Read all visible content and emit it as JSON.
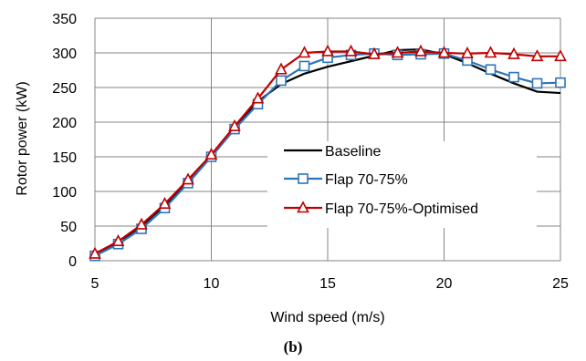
{
  "chart_data": {
    "type": "line",
    "title": "",
    "xlabel": "Wind speed (m/s)",
    "ylabel": "Rotor power (kW)",
    "xlim": [
      5,
      25
    ],
    "ylim": [
      0,
      350
    ],
    "x_ticks": [
      "5",
      "10",
      "15",
      "20",
      "25"
    ],
    "y_ticks": [
      "0",
      "50",
      "100",
      "150",
      "200",
      "250",
      "300",
      "350"
    ],
    "grid": true,
    "legend_position": "center-right",
    "x": [
      5,
      6,
      7,
      8,
      9,
      10,
      11,
      12,
      13,
      14,
      15,
      16,
      17,
      18,
      19,
      20,
      21,
      22,
      23,
      24,
      25
    ],
    "series": [
      {
        "name": "Baseline",
        "color": "#000000",
        "marker": "none",
        "values": [
          9,
          27,
          50,
          80,
          115,
          152,
          192,
          230,
          255,
          270,
          280,
          288,
          296,
          304,
          305,
          298,
          285,
          270,
          256,
          244,
          242
        ]
      },
      {
        "name": "Flap 70-75%",
        "color": "#2E75B6",
        "marker": "square",
        "values": [
          7,
          24,
          46,
          76,
          112,
          150,
          190,
          226,
          260,
          281,
          293,
          297,
          299,
          297,
          298,
          299,
          289,
          276,
          265,
          256,
          257
        ]
      },
      {
        "name": "Flap 70-75%-Optimised",
        "color": "#C00000",
        "marker": "triangle",
        "values": [
          10,
          28,
          52,
          82,
          117,
          153,
          194,
          234,
          276,
          300,
          302,
          302,
          298,
          300,
          302,
          300,
          299,
          300,
          298,
          295,
          295
        ]
      }
    ]
  },
  "caption": "(b)"
}
